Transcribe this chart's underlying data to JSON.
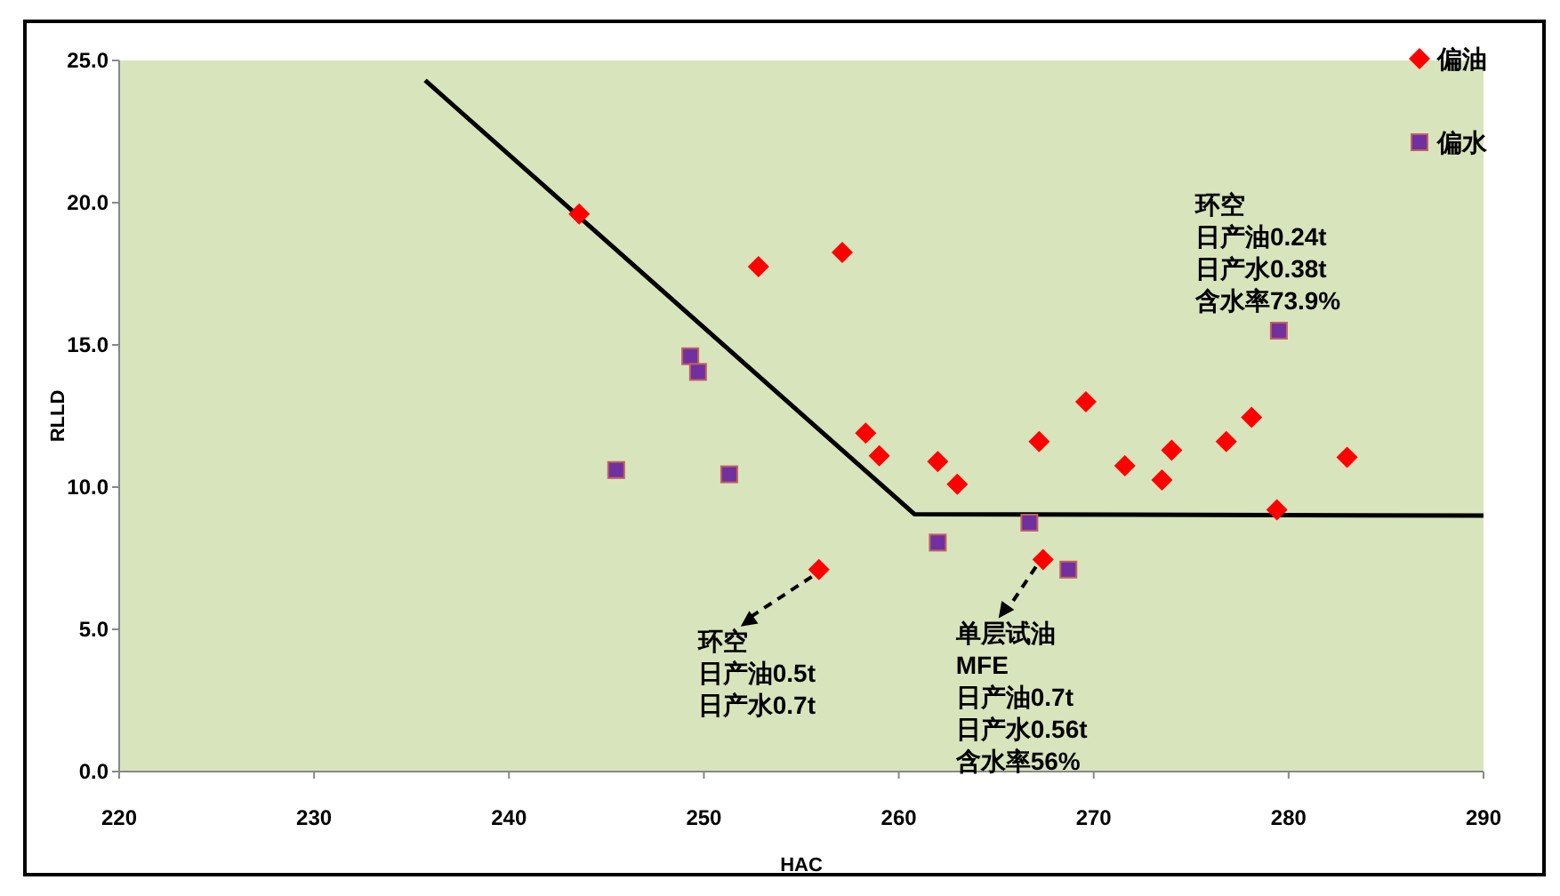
{
  "chart_data": {
    "type": "scatter",
    "xlabel": "HAC",
    "ylabel": "RLLD",
    "xlim": [
      220,
      290
    ],
    "ylim": [
      0,
      25
    ],
    "xticks": [
      220,
      230,
      240,
      250,
      260,
      270,
      280,
      290
    ],
    "yticks": [
      {
        "value": 0,
        "label": "0.0"
      },
      {
        "value": 5,
        "label": "5.0"
      },
      {
        "value": 10,
        "label": "10.0"
      },
      {
        "value": 15,
        "label": "15.0"
      },
      {
        "value": 20,
        "label": "20.0"
      },
      {
        "value": 25,
        "label": "25.0"
      }
    ],
    "grid": false,
    "legend": "top right",
    "series": [
      {
        "name": "偏油",
        "type": "scatter",
        "marker": "diamond",
        "color": "#ff0000",
        "x": [
          243.6,
          252.8,
          257.1,
          258.3,
          259.0,
          262.0,
          263.0,
          255.9,
          267.2,
          269.6,
          271.6,
          273.5,
          274.0,
          276.8,
          278.1,
          279.4,
          283.0,
          267.4
        ],
        "values": [
          19.6,
          17.75,
          18.25,
          11.9,
          11.1,
          10.9,
          10.1,
          7.1,
          11.6,
          13.0,
          10.75,
          10.25,
          11.3,
          11.6,
          12.45,
          9.2,
          11.05,
          7.45
        ]
      },
      {
        "name": "偏水",
        "type": "scatter",
        "marker": "square",
        "color": "#7030a0",
        "x": [
          249.3,
          249.7,
          245.5,
          251.3,
          262.0,
          266.7,
          268.7,
          279.5
        ],
        "values": [
          14.6,
          14.05,
          10.6,
          10.45,
          8.05,
          8.75,
          7.1,
          15.5
        ]
      },
      {
        "type": "line",
        "marker": "none",
        "color": "#000000",
        "x": [
          235.7,
          260.8,
          290
        ],
        "values": [
          24.3,
          9.05,
          9.0
        ]
      }
    ],
    "annotations": [
      "环空",
      "日产油0.24t",
      "日产水0.38t",
      {
        "text": "含水率73.9%",
        "x": 279.5,
        "y": 15.5
      },
      {
        "text": "环空",
        "x": 255.9,
        "y": 7.1
      },
      "日产油0.5t",
      "日产水0.7t",
      {
        "text": "单层试油",
        "x": 267.4,
        "y": 7.45
      },
      "MFE",
      "日产油0.7t",
      "日产水0.56t",
      "含水率56%"
    ]
  }
}
